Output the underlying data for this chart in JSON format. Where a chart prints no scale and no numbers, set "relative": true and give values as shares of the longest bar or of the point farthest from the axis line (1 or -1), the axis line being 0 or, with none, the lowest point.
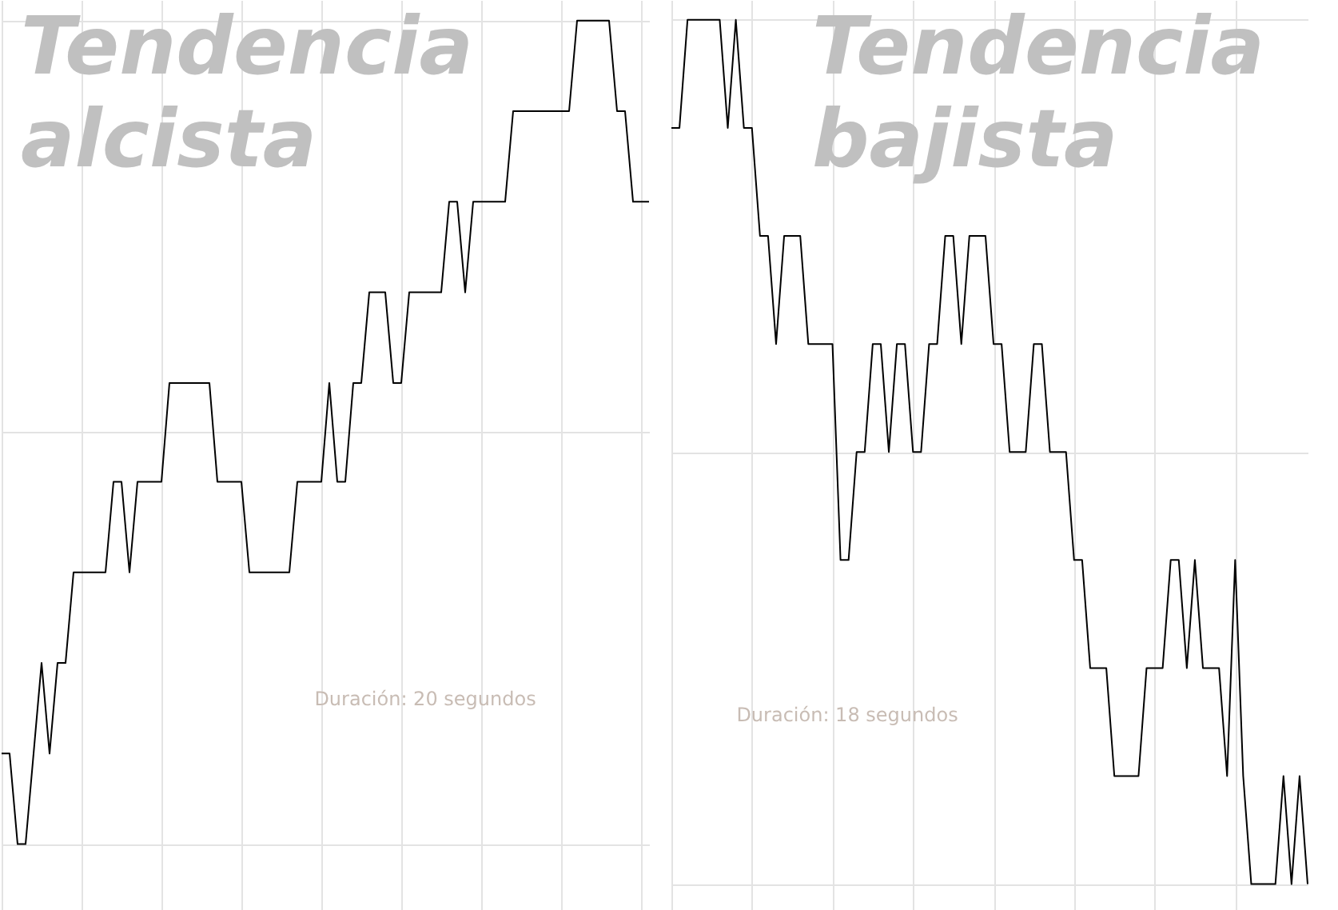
{
  "chart_data": [
    {
      "type": "line",
      "title": "Tendencia alcista",
      "annotations": [
        "Duración: 20 segundos"
      ],
      "relative": true,
      "grid": true,
      "line_style": "solid",
      "categories": [
        null,
        null,
        null,
        null,
        null,
        null,
        null,
        null,
        null,
        null,
        null,
        null,
        null,
        null,
        null,
        null,
        null,
        null,
        null,
        null,
        null,
        null,
        null,
        null,
        null,
        null,
        null,
        null,
        null,
        null,
        null,
        null,
        null,
        null,
        null,
        null,
        null,
        null,
        null,
        null,
        null,
        null,
        null,
        null,
        null,
        null,
        null,
        null,
        null,
        null,
        null,
        null,
        null,
        null,
        null,
        null,
        null,
        null,
        null,
        null,
        null,
        null,
        null,
        null,
        null,
        null,
        null,
        null,
        null,
        null,
        null,
        null,
        null,
        null,
        null,
        null,
        null,
        null,
        null,
        null,
        null,
        null
      ],
      "series": [
        {
          "color": "#000000",
          "values": [
            0.11,
            0.11,
            0,
            0,
            0.11,
            0.22,
            0.11,
            0.22,
            0.22,
            0.33,
            0.33,
            0.33,
            0.33,
            0.33,
            0.44,
            0.44,
            0.33,
            0.44,
            0.44,
            0.44,
            0.44,
            0.56,
            0.56,
            0.56,
            0.56,
            0.56,
            0.56,
            0.44,
            0.44,
            0.44,
            0.44,
            0.33,
            0.33,
            0.33,
            0.33,
            0.33,
            0.33,
            0.44,
            0.44,
            0.44,
            0.44,
            0.56,
            0.44,
            0.44,
            0.56,
            0.56,
            0.67,
            0.67,
            0.67,
            0.56,
            0.56,
            0.67,
            0.67,
            0.67,
            0.67,
            0.67,
            0.78,
            0.78,
            0.67,
            0.78,
            0.78,
            0.78,
            0.78,
            0.78,
            0.89,
            0.89,
            0.89,
            0.89,
            0.89,
            0.89,
            0.89,
            0.89,
            1,
            1,
            1,
            1,
            1,
            0.89,
            0.89,
            0.78,
            0.78,
            0.78
          ]
        }
      ]
    },
    {
      "type": "line",
      "title": "Tendencia bajista",
      "annotations": [
        "Duración: 18 segundos"
      ],
      "relative": true,
      "grid": true,
      "line_style": "solid",
      "categories": [
        null,
        null,
        null,
        null,
        null,
        null,
        null,
        null,
        null,
        null,
        null,
        null,
        null,
        null,
        null,
        null,
        null,
        null,
        null,
        null,
        null,
        null,
        null,
        null,
        null,
        null,
        null,
        null,
        null,
        null,
        null,
        null,
        null,
        null,
        null,
        null,
        null,
        null,
        null,
        null,
        null,
        null,
        null,
        null,
        null,
        null,
        null,
        null,
        null,
        null,
        null,
        null,
        null,
        null,
        null,
        null,
        null,
        null,
        null,
        null,
        null,
        null,
        null,
        null,
        null,
        null,
        null,
        null,
        null,
        null,
        null,
        null,
        null,
        null,
        null,
        null,
        null,
        null,
        null,
        null
      ],
      "series": [
        {
          "color": "#000000",
          "values": [
            0.875,
            0.875,
            1,
            1,
            1,
            1,
            1,
            0.875,
            1,
            0.875,
            0.875,
            0.75,
            0.75,
            0.625,
            0.75,
            0.75,
            0.75,
            0.625,
            0.625,
            0.625,
            0.625,
            0.375,
            0.375,
            0.5,
            0.5,
            0.625,
            0.625,
            0.5,
            0.625,
            0.625,
            0.5,
            0.5,
            0.625,
            0.625,
            0.75,
            0.75,
            0.625,
            0.75,
            0.75,
            0.75,
            0.625,
            0.625,
            0.5,
            0.5,
            0.5,
            0.625,
            0.625,
            0.5,
            0.5,
            0.5,
            0.375,
            0.375,
            0.25,
            0.25,
            0.25,
            0.125,
            0.125,
            0.125,
            0.125,
            0.25,
            0.25,
            0.25,
            0.375,
            0.375,
            0.25,
            0.375,
            0.25,
            0.25,
            0.25,
            0.125,
            0.375,
            0.125,
            0,
            0,
            0,
            0,
            0.125,
            0,
            0.125,
            0
          ]
        }
      ]
    }
  ]
}
